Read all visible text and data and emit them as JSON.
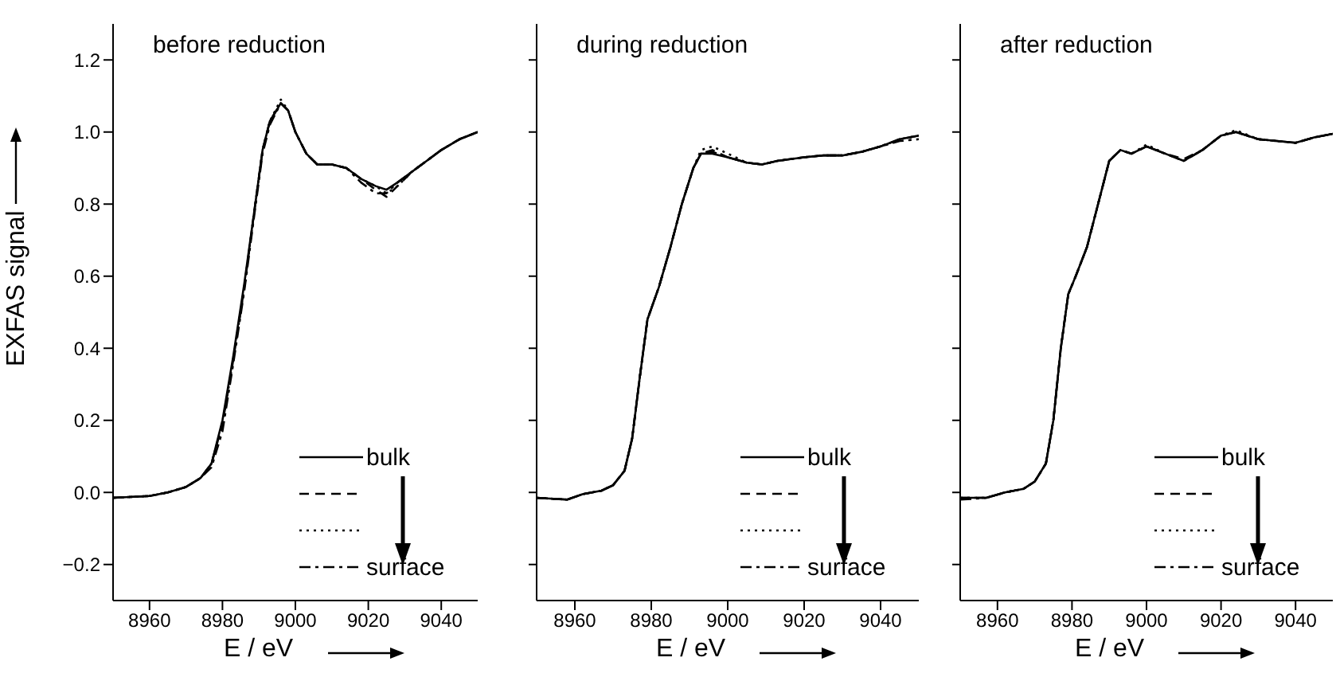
{
  "chart_data": [
    {
      "type": "line",
      "title": "before reduction",
      "xlabel": "E / eV",
      "ylabel": "EXFAS signal",
      "xlim": [
        8950,
        9050
      ],
      "xticks": [
        8960,
        8980,
        9000,
        9020,
        9040
      ],
      "ylim": [
        -0.3,
        1.3
      ],
      "yticks": [
        {
          "value": -0.2,
          "label": "−0.2"
        },
        {
          "value": 0,
          "label": "0.0"
        },
        0.2,
        0.4,
        0.6,
        0.8,
        {
          "value": 1,
          "label": "1.0"
        },
        1.2
      ],
      "grid": false,
      "legend": "bottom right",
      "marker": "none",
      "x": [
        8950,
        8960,
        8965,
        8970,
        8974,
        8977,
        8980,
        8983,
        8986,
        8989,
        8991,
        8993,
        8996,
        8998,
        9000,
        9003,
        9006,
        9010,
        9014,
        9018,
        9022,
        9025,
        9028,
        9032,
        9036,
        9040,
        9045,
        9050
      ],
      "series": [
        {
          "name": "bulk",
          "color": "#000000",
          "line_style": "solid",
          "values": [
            -0.015,
            -0.01,
            0.0,
            0.015,
            0.04,
            0.08,
            0.2,
            0.38,
            0.58,
            0.8,
            0.95,
            1.03,
            1.08,
            1.06,
            1.0,
            0.94,
            0.91,
            0.91,
            0.9,
            0.87,
            0.85,
            0.84,
            0.86,
            0.89,
            0.92,
            0.95,
            0.98,
            1.0
          ]
        },
        {
          "color": "#000000",
          "line_style": "dashed",
          "values": [
            -0.015,
            -0.01,
            0.0,
            0.015,
            0.04,
            0.08,
            0.19,
            0.37,
            0.57,
            0.8,
            0.95,
            1.03,
            1.08,
            1.06,
            1.0,
            0.94,
            0.91,
            0.91,
            0.9,
            0.87,
            0.84,
            0.82,
            0.85,
            0.89,
            0.92,
            0.95,
            0.98,
            1.0
          ]
        },
        {
          "color": "#000000",
          "line_style": "dotted",
          "values": [
            -0.015,
            -0.01,
            0.0,
            0.015,
            0.04,
            0.08,
            0.19,
            0.37,
            0.57,
            0.8,
            0.95,
            1.03,
            1.09,
            1.06,
            1.0,
            0.94,
            0.91,
            0.91,
            0.9,
            0.87,
            0.85,
            0.83,
            0.85,
            0.89,
            0.92,
            0.95,
            0.98,
            1.0
          ]
        },
        {
          "name": "surface",
          "color": "#000000",
          "line_style": "dashdot",
          "values": [
            -0.015,
            -0.01,
            0.0,
            0.015,
            0.04,
            0.07,
            0.17,
            0.36,
            0.56,
            0.79,
            0.94,
            1.02,
            1.08,
            1.06,
            1.0,
            0.94,
            0.91,
            0.91,
            0.9,
            0.86,
            0.83,
            0.83,
            0.86,
            0.89,
            0.92,
            0.95,
            0.98,
            1.0
          ]
        }
      ]
    },
    {
      "type": "line",
      "title": "during reduction",
      "xlabel": "E / eV",
      "xlim": [
        8950,
        9050
      ],
      "xticks": [
        8960,
        8980,
        9000,
        9020,
        9040
      ],
      "ylim": [
        -0.3,
        1.3
      ],
      "yticks": [
        -0.2,
        0.0,
        0.2,
        0.4,
        0.6,
        0.8,
        1.0,
        1.2
      ],
      "grid": false,
      "legend": "bottom right",
      "marker": "none",
      "tick_labels": "x",
      "x": [
        8950,
        8958,
        8962,
        8967,
        8970,
        8973,
        8975,
        8977,
        8979,
        8982,
        8985,
        8988,
        8991,
        8993,
        8996,
        9000,
        9005,
        9009,
        9013,
        9020,
        9025,
        9030,
        9035,
        9040,
        9045,
        9050
      ],
      "series": [
        {
          "name": "bulk",
          "color": "#000000",
          "line_style": "solid",
          "values": [
            -0.015,
            -0.02,
            -0.005,
            0.005,
            0.02,
            0.06,
            0.15,
            0.32,
            0.48,
            0.57,
            0.68,
            0.8,
            0.9,
            0.94,
            0.94,
            0.93,
            0.915,
            0.91,
            0.92,
            0.93,
            0.935,
            0.935,
            0.945,
            0.96,
            0.98,
            0.99
          ]
        },
        {
          "color": "#000000",
          "line_style": "dashed",
          "values": [
            -0.015,
            -0.02,
            -0.005,
            0.005,
            0.02,
            0.06,
            0.15,
            0.32,
            0.48,
            0.57,
            0.68,
            0.8,
            0.9,
            0.94,
            0.95,
            0.93,
            0.915,
            0.91,
            0.92,
            0.93,
            0.935,
            0.935,
            0.945,
            0.96,
            0.98,
            0.99
          ]
        },
        {
          "color": "#000000",
          "line_style": "dotted",
          "values": [
            -0.015,
            -0.02,
            -0.005,
            0.005,
            0.02,
            0.06,
            0.15,
            0.32,
            0.48,
            0.57,
            0.68,
            0.8,
            0.9,
            0.95,
            0.96,
            0.94,
            0.915,
            0.91,
            0.92,
            0.93,
            0.935,
            0.935,
            0.945,
            0.96,
            0.98,
            0.99
          ]
        },
        {
          "name": "surface",
          "color": "#000000",
          "line_style": "dashdot",
          "values": [
            -0.015,
            -0.02,
            -0.005,
            0.005,
            0.02,
            0.06,
            0.15,
            0.32,
            0.48,
            0.57,
            0.68,
            0.8,
            0.9,
            0.94,
            0.945,
            0.93,
            0.915,
            0.91,
            0.92,
            0.93,
            0.935,
            0.935,
            0.945,
            0.96,
            0.975,
            0.98
          ]
        }
      ]
    },
    {
      "type": "line",
      "title": "after reduction",
      "xlabel": "E / eV",
      "xlim": [
        8950,
        9050
      ],
      "xticks": [
        8960,
        8980,
        9000,
        9020,
        9040
      ],
      "ylim": [
        -0.3,
        1.3
      ],
      "yticks": [
        -0.2,
        0.0,
        0.2,
        0.4,
        0.6,
        0.8,
        1.0,
        1.2
      ],
      "grid": false,
      "legend": "bottom right",
      "marker": "none",
      "tick_labels": "x",
      "x": [
        8950,
        8957,
        8962,
        8967,
        8970,
        8973,
        8975,
        8977,
        8979,
        8981,
        8984,
        8987,
        8990,
        8993,
        8996,
        9000,
        9005,
        9010,
        9015,
        9020,
        9024,
        9030,
        9035,
        9040,
        9045,
        9050
      ],
      "series": [
        {
          "name": "bulk",
          "color": "#000000",
          "line_style": "solid",
          "values": [
            -0.015,
            -0.015,
            0.0,
            0.01,
            0.03,
            0.08,
            0.2,
            0.4,
            0.55,
            0.6,
            0.68,
            0.8,
            0.92,
            0.95,
            0.94,
            0.96,
            0.94,
            0.92,
            0.95,
            0.99,
            1.0,
            0.98,
            0.975,
            0.97,
            0.985,
            0.995
          ]
        },
        {
          "color": "#000000",
          "line_style": "dashed",
          "values": [
            -0.015,
            -0.015,
            0.0,
            0.01,
            0.03,
            0.08,
            0.2,
            0.4,
            0.55,
            0.6,
            0.68,
            0.8,
            0.92,
            0.95,
            0.94,
            0.96,
            0.94,
            0.925,
            0.95,
            0.99,
            1.0,
            0.98,
            0.975,
            0.97,
            0.985,
            0.995
          ]
        },
        {
          "color": "#000000",
          "line_style": "dotted",
          "values": [
            -0.015,
            -0.015,
            0.0,
            0.01,
            0.03,
            0.08,
            0.2,
            0.4,
            0.55,
            0.6,
            0.68,
            0.8,
            0.92,
            0.95,
            0.94,
            0.965,
            0.94,
            0.92,
            0.95,
            0.99,
            1.005,
            0.98,
            0.975,
            0.97,
            0.985,
            0.995
          ]
        },
        {
          "name": "surface",
          "color": "#000000",
          "line_style": "dashdot",
          "values": [
            -0.02,
            -0.015,
            0.0,
            0.01,
            0.03,
            0.08,
            0.2,
            0.4,
            0.55,
            0.6,
            0.68,
            0.8,
            0.92,
            0.95,
            0.94,
            0.96,
            0.94,
            0.92,
            0.95,
            0.99,
            1.0,
            0.98,
            0.975,
            0.97,
            0.985,
            0.995
          ]
        }
      ]
    }
  ]
}
